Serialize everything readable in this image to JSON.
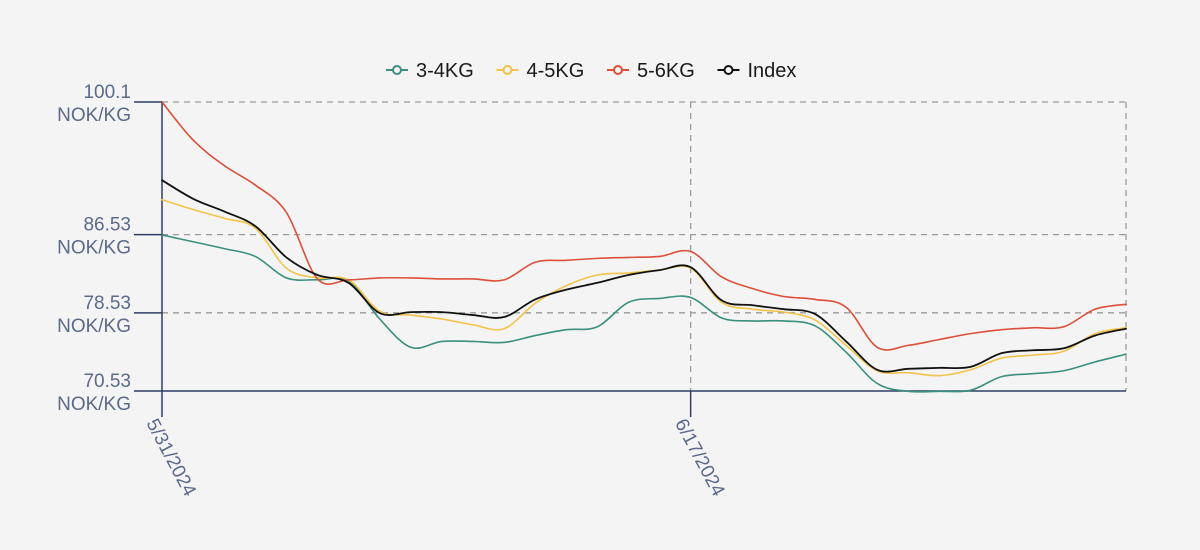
{
  "chart_data": {
    "type": "line",
    "title": "",
    "xlabel": "",
    "ylabel": "",
    "x_ticks": [
      "5/31/2024",
      "6/17/2024"
    ],
    "y_ticks": [
      {
        "value": 100.1,
        "label": "100.1",
        "unit": "NOK/KG"
      },
      {
        "value": 86.53,
        "label": "86.53",
        "unit": "NOK/KG"
      },
      {
        "value": 78.53,
        "label": "78.53",
        "unit": "NOK/KG"
      },
      {
        "value": 70.53,
        "label": "70.53",
        "unit": "NOK/KG"
      }
    ],
    "ylim": [
      70.53,
      100.1
    ],
    "xlim": [
      "5/31/2024",
      "7/1/2024"
    ],
    "legend_position": "top-center",
    "grid": true,
    "x": [
      "5/31/2024",
      "6/1/2024",
      "6/2/2024",
      "6/3/2024",
      "6/4/2024",
      "6/5/2024",
      "6/6/2024",
      "6/7/2024",
      "6/8/2024",
      "6/9/2024",
      "6/10/2024",
      "6/11/2024",
      "6/12/2024",
      "6/13/2024",
      "6/14/2024",
      "6/15/2024",
      "6/16/2024",
      "6/17/2024",
      "6/18/2024",
      "6/19/2024",
      "6/20/2024",
      "6/21/2024",
      "6/22/2024",
      "6/23/2024",
      "6/24/2024",
      "6/25/2024",
      "6/26/2024",
      "6/27/2024",
      "6/28/2024",
      "6/29/2024",
      "6/30/2024",
      "7/1/2024"
    ],
    "series": [
      {
        "name": "3-4KG",
        "color": "#3a8f7e",
        "values": [
          86.5,
          85.8,
          85.1,
          84.3,
          82.1,
          81.9,
          81.8,
          77.9,
          75.0,
          75.6,
          75.6,
          75.5,
          76.2,
          76.8,
          77.1,
          79.6,
          80.0,
          80.1,
          78.0,
          77.7,
          77.7,
          77.2,
          74.5,
          71.3,
          70.5,
          70.5,
          70.6,
          72.0,
          72.3,
          72.6,
          73.5,
          74.3
        ]
      },
      {
        "name": "4-5KG",
        "color": "#f2c34b",
        "values": [
          90.1,
          89.1,
          88.2,
          87.2,
          83.1,
          82.1,
          81.9,
          78.7,
          78.3,
          77.9,
          77.3,
          76.9,
          79.5,
          81.3,
          82.4,
          82.6,
          82.9,
          83.1,
          79.6,
          78.9,
          78.6,
          77.8,
          75.2,
          72.6,
          72.4,
          72.1,
          72.7,
          73.9,
          74.2,
          74.6,
          76.4,
          77.0
        ]
      },
      {
        "name": "5-6KG",
        "color": "#dd4f3a",
        "values": [
          100.1,
          96.2,
          93.6,
          91.6,
          88.8,
          82.0,
          81.9,
          82.1,
          82.1,
          82.0,
          82.0,
          81.9,
          83.7,
          83.9,
          84.1,
          84.2,
          84.3,
          84.8,
          82.2,
          81.0,
          80.2,
          79.9,
          79.1,
          75.0,
          75.2,
          75.8,
          76.4,
          76.8,
          77.0,
          77.1,
          78.9,
          79.4
        ]
      },
      {
        "name": "Index",
        "color": "#111111",
        "values": [
          92.1,
          90.2,
          88.9,
          87.4,
          84.2,
          82.4,
          81.6,
          78.5,
          78.6,
          78.6,
          78.3,
          78.1,
          79.9,
          80.9,
          81.6,
          82.4,
          82.9,
          83.2,
          79.8,
          79.3,
          78.9,
          78.4,
          75.6,
          72.7,
          72.8,
          72.9,
          73.0,
          74.4,
          74.7,
          74.9,
          76.2,
          76.9
        ]
      }
    ]
  }
}
